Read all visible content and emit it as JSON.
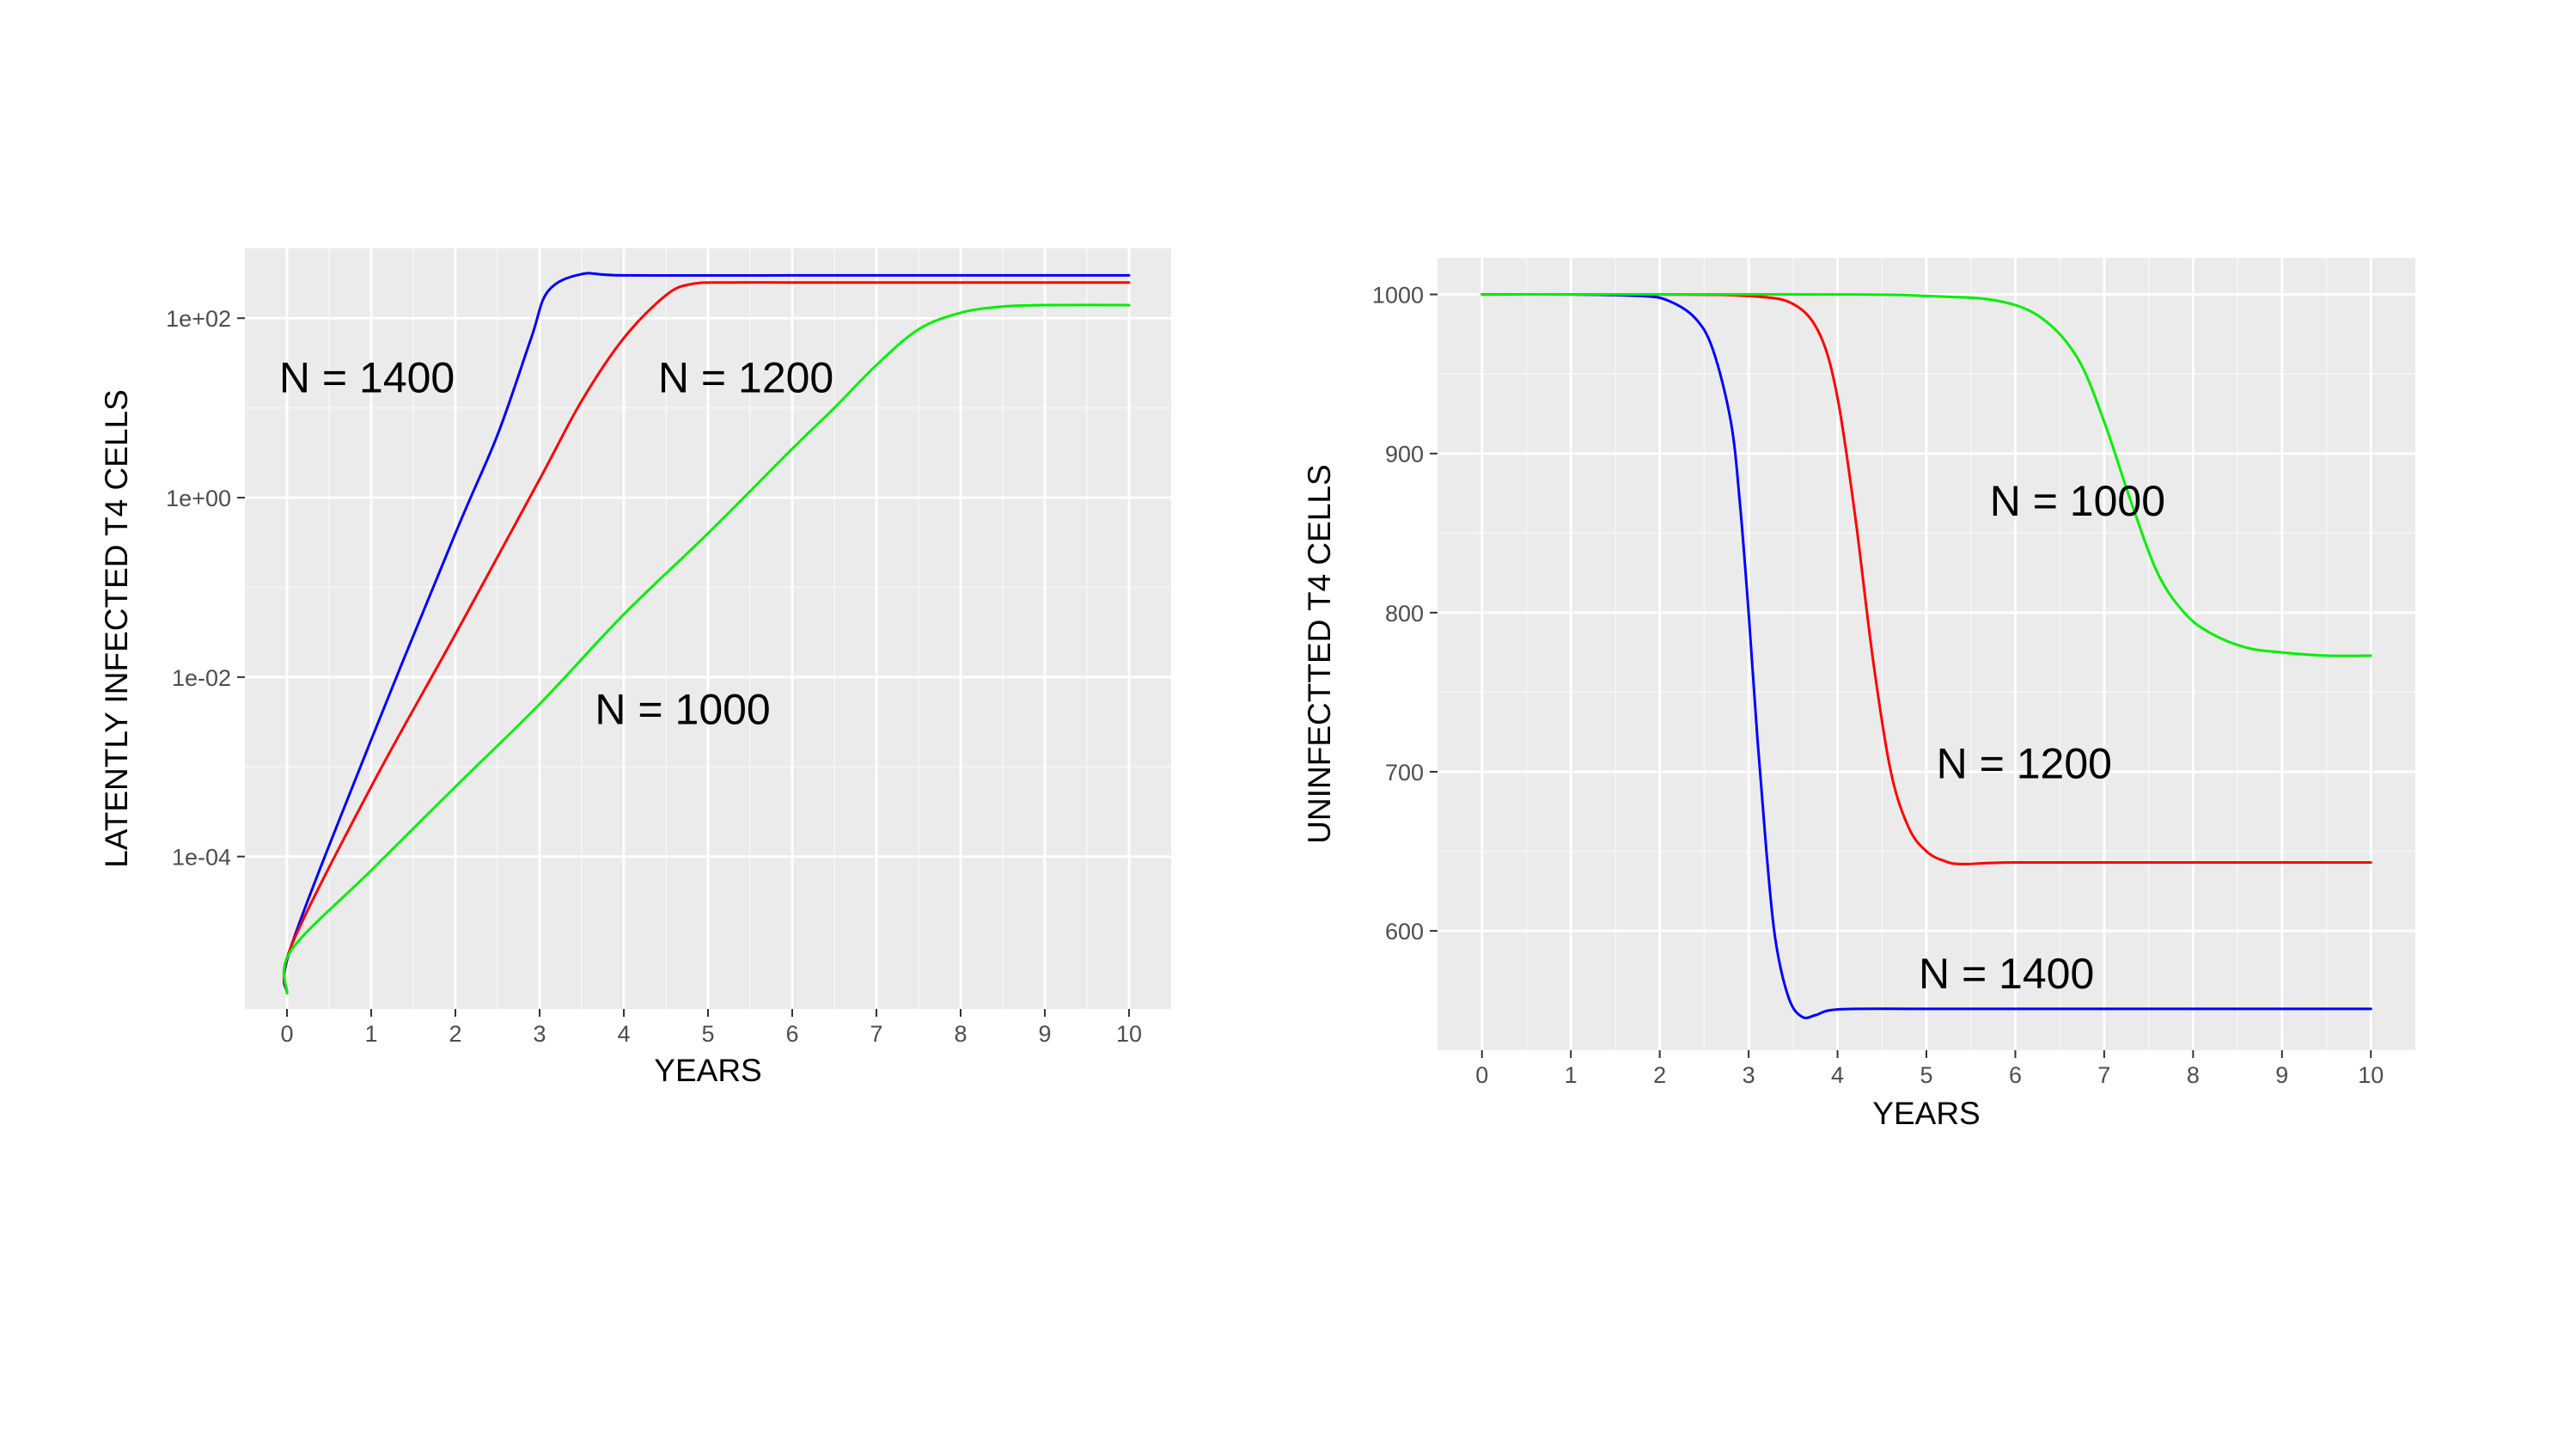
{
  "chart_data": [
    {
      "type": "line",
      "xlabel": "YEARS",
      "ylabel": "LATENTLY INFECTED T4 CELLS",
      "x_scale": "linear",
      "y_scale": "log10",
      "xlim": [
        -0.5,
        10.5
      ],
      "ylim": [
        2e-06,
        600
      ],
      "grid": true,
      "x_ticks": [
        0,
        1,
        2,
        3,
        4,
        5,
        6,
        7,
        8,
        9,
        10
      ],
      "x_tick_labels": [
        "0",
        "1",
        "2",
        "3",
        "4",
        "5",
        "6",
        "7",
        "8",
        "9",
        "10"
      ],
      "y_ticks": [
        0.0001,
        0.01,
        1,
        100
      ],
      "y_tick_labels": [
        "1e-04",
        "1e-02",
        "1e+00",
        "1e+02"
      ],
      "series": [
        {
          "color": "#0000ff",
          "x": [
            0,
            0.05,
            1,
            2,
            2.5,
            2.9,
            3.1,
            3.5,
            4,
            6,
            8,
            10
          ],
          "y": [
            3e-06,
            1e-05,
            0.002,
            0.4,
            5,
            60,
            200,
            310,
            300,
            300,
            300,
            300
          ]
        },
        {
          "color": "#ff0000",
          "x": [
            0,
            0.05,
            1,
            2,
            3,
            3.5,
            4,
            4.5,
            4.8,
            5.2,
            6,
            8,
            10
          ],
          "y": [
            3e-06,
            1e-05,
            0.0006,
            0.03,
            1.6,
            12,
            60,
            180,
            240,
            250,
            250,
            250,
            250
          ]
        },
        {
          "color": "#00ee00",
          "x": [
            0,
            0.05,
            1,
            2,
            3,
            4,
            5,
            6,
            6.5,
            7,
            7.5,
            8,
            8.5,
            9,
            10
          ],
          "y": [
            3e-06,
            9e-06,
            7e-05,
            0.0006,
            0.005,
            0.05,
            0.4,
            3.5,
            10,
            30,
            75,
            115,
            135,
            140,
            140
          ]
        }
      ],
      "annotations": [
        {
          "text": "N = 1400",
          "x": 0.95,
          "y": 15
        },
        {
          "text": "N = 1200",
          "x": 5.45,
          "y": 15
        },
        {
          "text": "N = 1000",
          "x": 4.7,
          "y": 0.003
        }
      ]
    },
    {
      "type": "line",
      "xlabel": "YEARS",
      "ylabel": "UNINFECTTED T4 CELLS",
      "x_scale": "linear",
      "y_scale": "linear",
      "xlim": [
        -0.5,
        10.5
      ],
      "ylim": [
        525,
        1023
      ],
      "grid": true,
      "x_ticks": [
        0,
        1,
        2,
        3,
        4,
        5,
        6,
        7,
        8,
        9,
        10
      ],
      "x_tick_labels": [
        "0",
        "1",
        "2",
        "3",
        "4",
        "5",
        "6",
        "7",
        "8",
        "9",
        "10"
      ],
      "y_ticks": [
        600,
        700,
        800,
        900,
        1000
      ],
      "y_tick_labels": [
        "600",
        "700",
        "800",
        "900",
        "1000"
      ],
      "series": [
        {
          "color": "#0000ff",
          "x": [
            0,
            1,
            1.8,
            2.1,
            2.4,
            2.6,
            2.8,
            2.9,
            3.0,
            3.1,
            3.2,
            3.3,
            3.45,
            3.6,
            3.75,
            3.9,
            4.2,
            5,
            7,
            10
          ],
          "y": [
            1000,
            1000,
            999,
            996,
            985,
            965,
            920,
            870,
            800,
            720,
            650,
            595,
            558,
            546,
            547,
            550,
            551,
            551,
            551,
            551
          ]
        },
        {
          "color": "#ff0000",
          "x": [
            0,
            2,
            3,
            3.5,
            3.8,
            4.0,
            4.2,
            4.4,
            4.6,
            4.8,
            5.0,
            5.2,
            5.4,
            6,
            8,
            10
          ],
          "y": [
            1000,
            1000,
            999,
            994,
            975,
            935,
            860,
            770,
            700,
            665,
            650,
            644,
            642,
            643,
            643,
            643
          ]
        },
        {
          "color": "#00ee00",
          "x": [
            0,
            4,
            5,
            5.8,
            6.3,
            6.7,
            7.0,
            7.3,
            7.6,
            7.9,
            8.2,
            8.6,
            9,
            9.5,
            10
          ],
          "y": [
            1000,
            1000,
            999,
            996,
            985,
            960,
            920,
            870,
            825,
            800,
            787,
            778,
            775,
            773,
            773
          ]
        }
      ],
      "annotations": [
        {
          "text": "N = 1000",
          "x": 6.7,
          "y": 861
        },
        {
          "text": "N = 1200",
          "x": 6.1,
          "y": 696
        },
        {
          "text": "N = 1400",
          "x": 5.9,
          "y": 564
        }
      ]
    }
  ]
}
